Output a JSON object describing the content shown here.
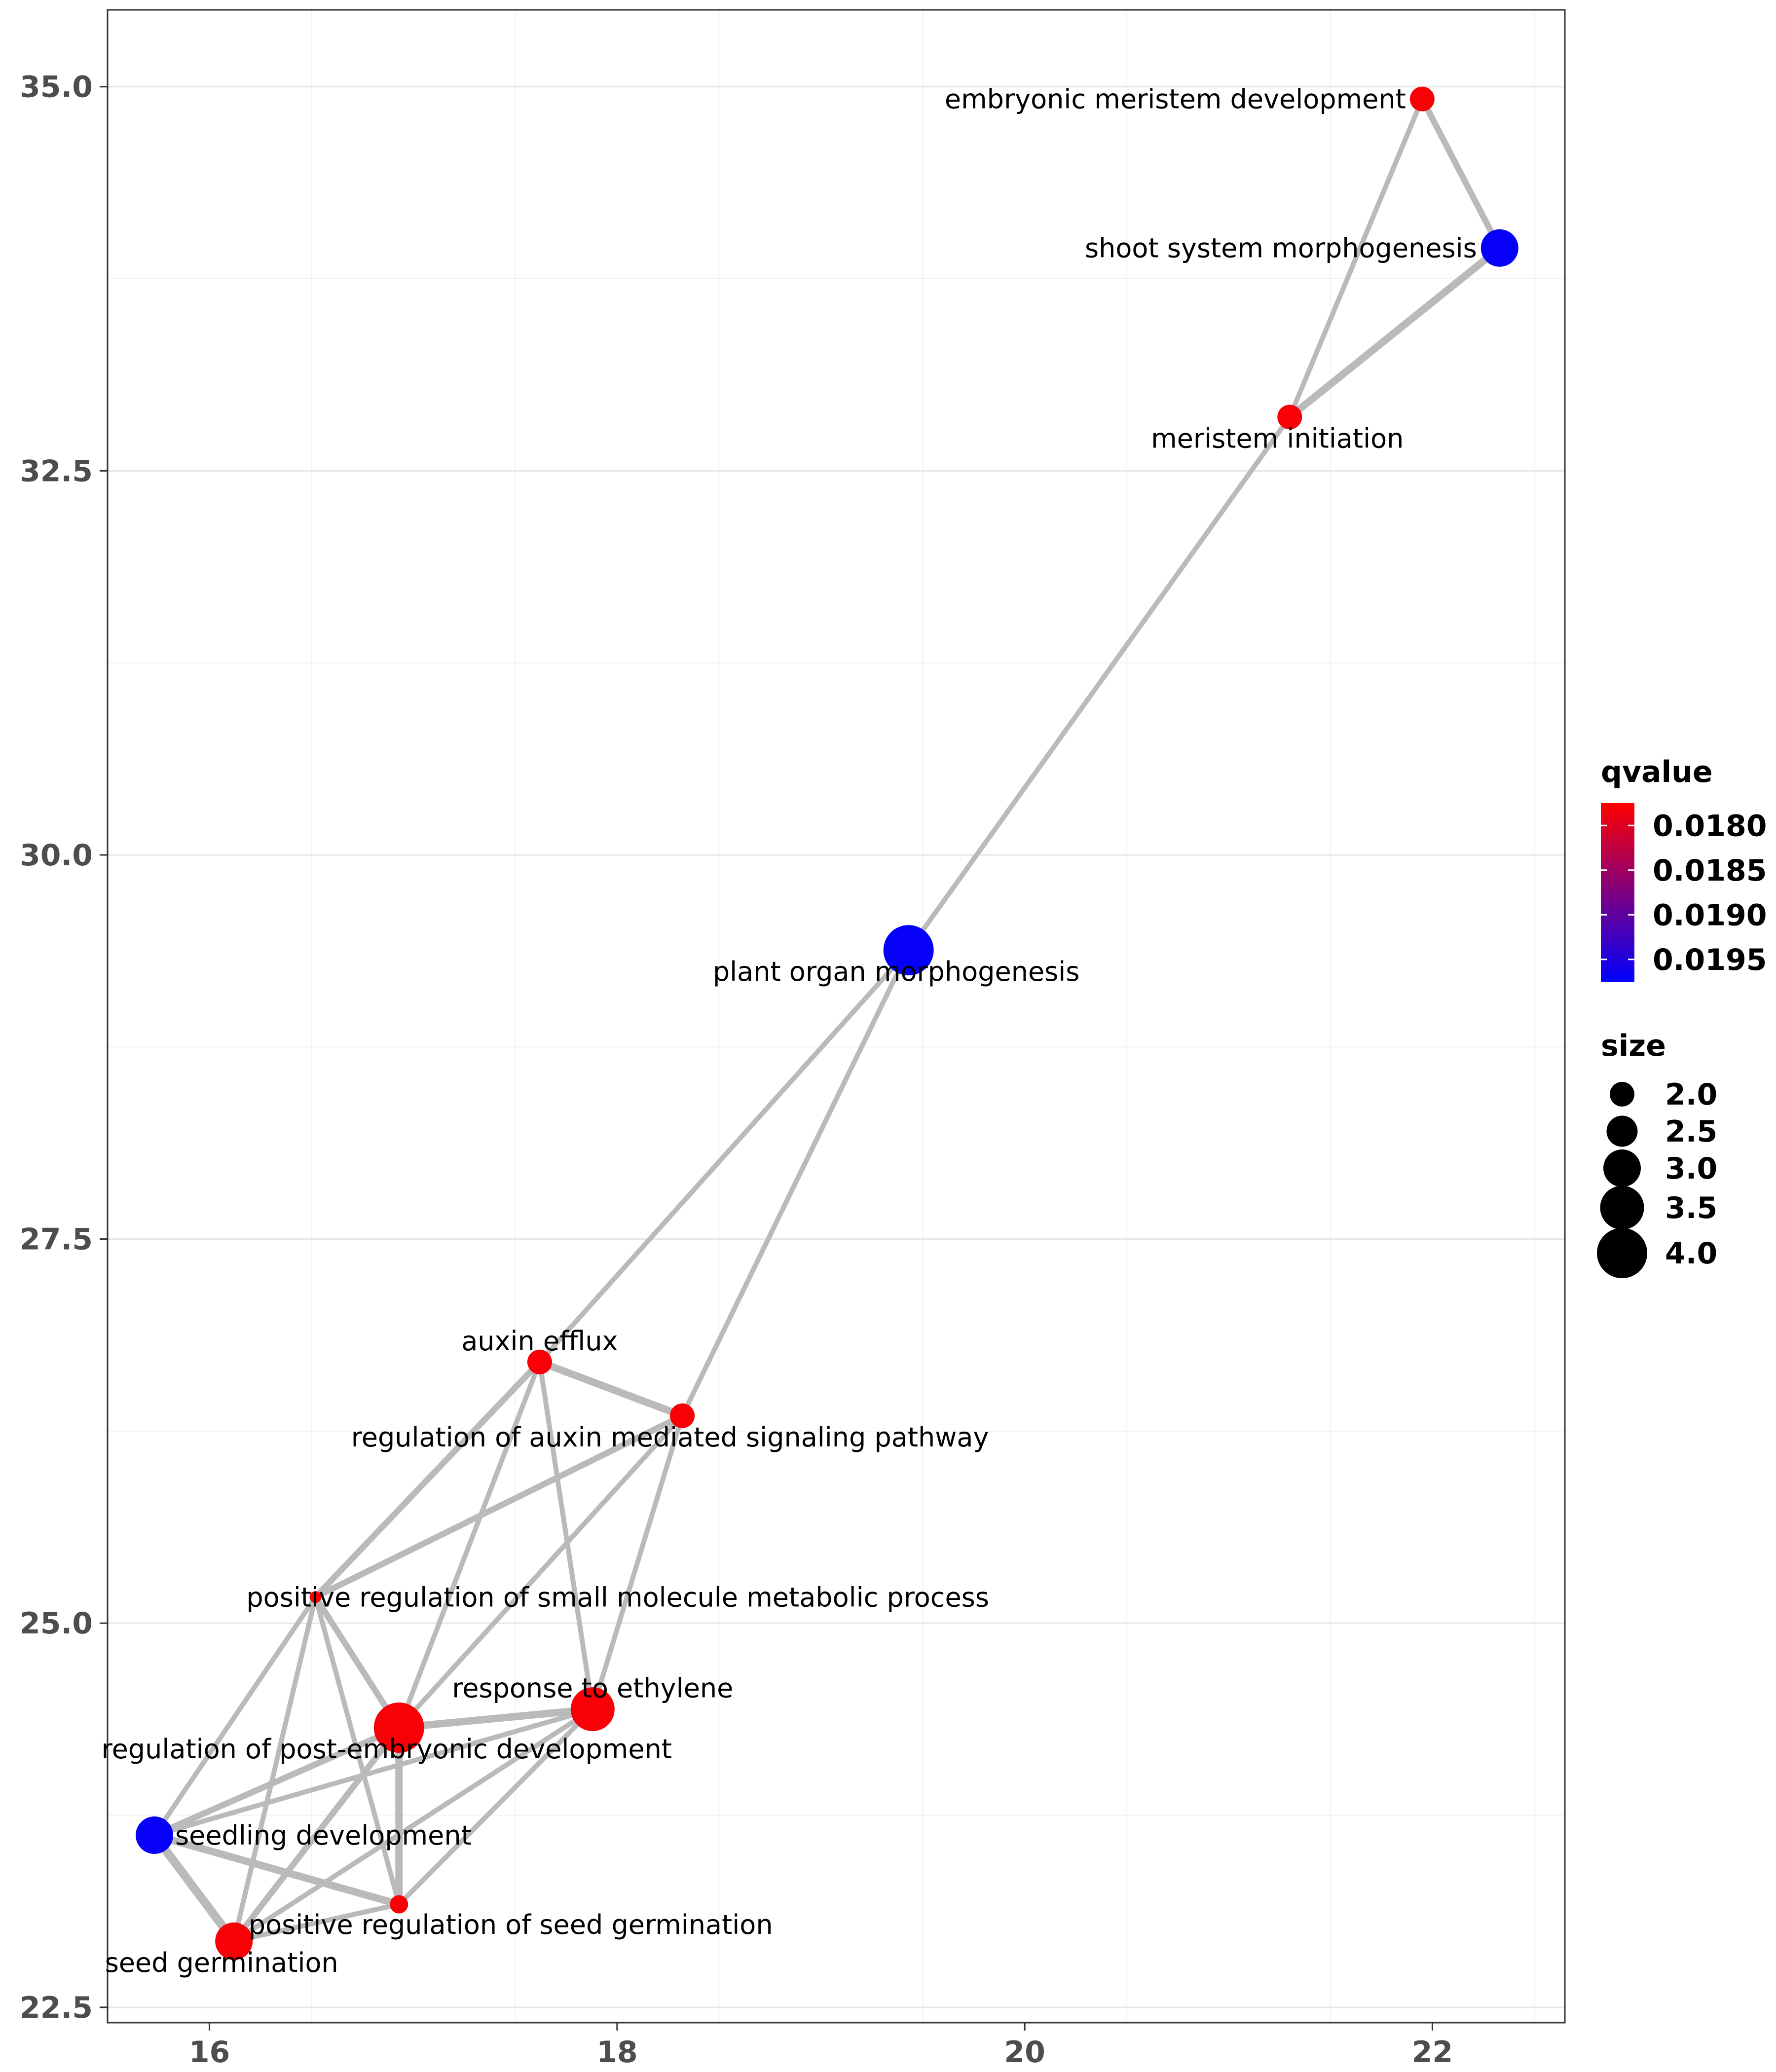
{
  "chart_data": {
    "type": "network",
    "title": "",
    "xlabel": "",
    "ylabel": "",
    "xlim": [
      15.5,
      22.65
    ],
    "ylim": [
      22.4,
      35.5
    ],
    "x_ticks": [
      {
        "value": 16,
        "label": "16"
      },
      {
        "value": 18,
        "label": "18"
      },
      {
        "value": 20,
        "label": "20"
      },
      {
        "value": 22,
        "label": "22"
      }
    ],
    "y_ticks": [
      {
        "value": 22.5,
        "label": "22.5"
      },
      {
        "value": 25.0,
        "label": "25.0"
      },
      {
        "value": 27.5,
        "label": "27.5"
      },
      {
        "value": 30.0,
        "label": "30.0"
      },
      {
        "value": 32.5,
        "label": "32.5"
      },
      {
        "value": 35.0,
        "label": "35.0"
      }
    ],
    "grid": true,
    "legend_position": "right",
    "qvalue_legend": {
      "title": "qvalue",
      "labels": [
        "0.0180",
        "0.0185",
        "0.0190",
        "0.0195"
      ],
      "low_color": "#ff0000",
      "high_color": "#0000ff",
      "range": [
        0.01775,
        0.01975
      ]
    },
    "size_legend": {
      "title": "size",
      "labels": [
        "2.0",
        "2.5",
        "3.0",
        "3.5",
        "4.0"
      ],
      "values": [
        2.0,
        2.5,
        3.0,
        3.5,
        4.0
      ]
    },
    "nodes": [
      {
        "id": "emb",
        "label": "embryonic meristem development",
        "x": 21.95,
        "y": 34.92,
        "size": 2.0,
        "qvalue": 0.0178,
        "label_anchor": "end"
      },
      {
        "id": "shoot",
        "label": "shoot system morphogenesis",
        "x": 22.33,
        "y": 33.95,
        "size": 3.0,
        "qvalue": 0.0197,
        "label_anchor": "end"
      },
      {
        "id": "merinit",
        "label": "meristem initiation",
        "x": 21.3,
        "y": 32.85,
        "size": 2.0,
        "qvalue": 0.0178,
        "label_anchor": "middle-below"
      },
      {
        "id": "plant",
        "label": "plant organ morphogenesis",
        "x": 19.43,
        "y": 29.38,
        "size": 4.0,
        "qvalue": 0.0197,
        "label_anchor": "middle-below"
      },
      {
        "id": "auxeff",
        "label": "auxin efflux",
        "x": 17.62,
        "y": 26.7,
        "size": 2.0,
        "qvalue": 0.0178,
        "label_anchor": "middle-above"
      },
      {
        "id": "regaux",
        "label": "regulation of auxin mediated signaling pathway",
        "x": 18.32,
        "y": 26.35,
        "size": 2.0,
        "qvalue": 0.0178,
        "label_anchor": "middle-below"
      },
      {
        "id": "posmol",
        "label": "positive regulation of small molecule metabolic process",
        "x": 16.52,
        "y": 25.17,
        "size": 1.0,
        "qvalue": 0.0178,
        "label_anchor": "start-right"
      },
      {
        "id": "resp",
        "label": "response to ethylene",
        "x": 17.88,
        "y": 24.44,
        "size": 3.5,
        "qvalue": 0.0178,
        "label_anchor": "middle-above"
      },
      {
        "id": "regpost",
        "label": "regulation of post-embryonic development",
        "x": 16.93,
        "y": 24.32,
        "size": 4.0,
        "qvalue": 0.0178,
        "label_anchor": "middle-below"
      },
      {
        "id": "seedling",
        "label": "seedling development",
        "x": 15.73,
        "y": 23.62,
        "size": 3.0,
        "qvalue": 0.0197,
        "label_anchor": "start"
      },
      {
        "id": "posseed",
        "label": "positive regulation of seed germination",
        "x": 16.93,
        "y": 23.17,
        "size": 1.5,
        "qvalue": 0.0178,
        "label_anchor": "start-below"
      },
      {
        "id": "seedgerm",
        "label": "seed germination",
        "x": 16.12,
        "y": 22.93,
        "size": 3.0,
        "qvalue": 0.0178,
        "label_anchor": "middle-below"
      }
    ],
    "edges": [
      {
        "source": "emb",
        "target": "shoot",
        "weight": 3
      },
      {
        "source": "emb",
        "target": "merinit",
        "weight": 2
      },
      {
        "source": "shoot",
        "target": "merinit",
        "weight": 4
      },
      {
        "source": "merinit",
        "target": "plant",
        "weight": 2
      },
      {
        "source": "plant",
        "target": "auxeff",
        "weight": 2
      },
      {
        "source": "plant",
        "target": "regaux",
        "weight": 2
      },
      {
        "source": "auxeff",
        "target": "regaux",
        "weight": 4
      },
      {
        "source": "auxeff",
        "target": "posmol",
        "weight": 3
      },
      {
        "source": "auxeff",
        "target": "regpost",
        "weight": 2
      },
      {
        "source": "auxeff",
        "target": "resp",
        "weight": 2
      },
      {
        "source": "regaux",
        "target": "posmol",
        "weight": 3
      },
      {
        "source": "regaux",
        "target": "regpost",
        "weight": 2
      },
      {
        "source": "regaux",
        "target": "resp",
        "weight": 2
      },
      {
        "source": "posmol",
        "target": "seedling",
        "weight": 2
      },
      {
        "source": "posmol",
        "target": "seedgerm",
        "weight": 2
      },
      {
        "source": "posmol",
        "target": "regpost",
        "weight": 3
      },
      {
        "source": "posmol",
        "target": "posseed",
        "weight": 2
      },
      {
        "source": "regpost",
        "target": "resp",
        "weight": 4
      },
      {
        "source": "regpost",
        "target": "seedling",
        "weight": 3
      },
      {
        "source": "regpost",
        "target": "posseed",
        "weight": 4
      },
      {
        "source": "regpost",
        "target": "seedgerm",
        "weight": 3
      },
      {
        "source": "resp",
        "target": "seedling",
        "weight": 2
      },
      {
        "source": "resp",
        "target": "seedgerm",
        "weight": 2
      },
      {
        "source": "resp",
        "target": "posseed",
        "weight": 2
      },
      {
        "source": "seedling",
        "target": "seedgerm",
        "weight": 5
      },
      {
        "source": "seedling",
        "target": "posseed",
        "weight": 4
      },
      {
        "source": "seedgerm",
        "target": "posseed",
        "weight": 2
      }
    ]
  }
}
